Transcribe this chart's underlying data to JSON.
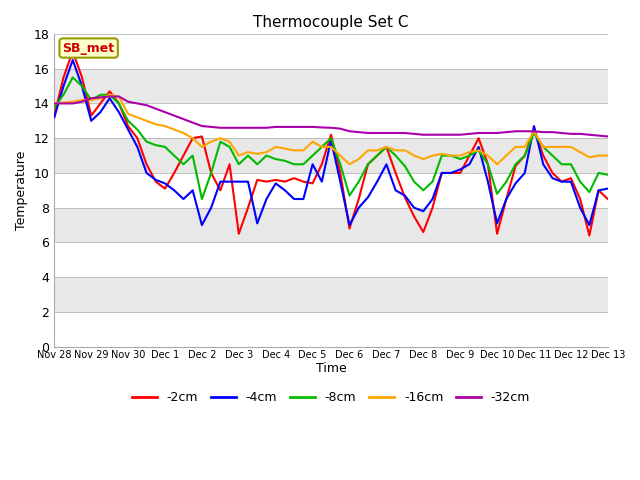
{
  "title": "Thermocouple Set C",
  "xlabel": "Time",
  "ylabel": "Temperature",
  "ylim": [
    0,
    18
  ],
  "yticks": [
    0,
    2,
    4,
    6,
    8,
    10,
    12,
    14,
    16,
    18
  ],
  "annotation": "SB_met",
  "background_color": "#ffffff",
  "legend_labels": [
    "-2cm",
    "-4cm",
    "-8cm",
    "-16cm",
    "-32cm"
  ],
  "legend_colors": [
    "#ff0000",
    "#0000ff",
    "#00bb00",
    "#ffa500",
    "#aa00aa"
  ],
  "xtick_labels": [
    "Nov 28",
    "Nov 29",
    "Nov 30",
    "Dec 1",
    "Dec 2",
    "Dec 3",
    "Dec 4",
    "Dec 5",
    "Dec 6",
    "Dec 7",
    "Dec 8",
    "Dec 9",
    "Dec 10",
    "Dec 11",
    "Dec 12",
    "Dec 13"
  ],
  "band_colors": [
    "#ffffff",
    "#e8e8e8"
  ],
  "series": {
    "-2cm": {
      "color": "#ff0000",
      "x": [
        0,
        0.25,
        0.5,
        0.75,
        1.0,
        1.25,
        1.5,
        1.75,
        2.0,
        2.25,
        2.5,
        2.75,
        3.0,
        3.25,
        3.5,
        3.75,
        4.0,
        4.25,
        4.5,
        4.75,
        5.0,
        5.25,
        5.5,
        5.75,
        6.0,
        6.25,
        6.5,
        6.75,
        7.0,
        7.25,
        7.5,
        7.75,
        8.0,
        8.25,
        8.5,
        8.75,
        9.0,
        9.25,
        9.5,
        9.75,
        10.0,
        10.25,
        10.5,
        10.75,
        11.0,
        11.25,
        11.5,
        11.75,
        12.0,
        12.25,
        12.5,
        12.75,
        13.0,
        13.25,
        13.5,
        13.75,
        14.0,
        14.25,
        14.5,
        14.75,
        15.0
      ],
      "y": [
        13.3,
        15.5,
        17.0,
        15.5,
        13.3,
        14.0,
        14.7,
        14.0,
        12.7,
        12.0,
        10.5,
        9.5,
        9.1,
        10.0,
        11.0,
        12.0,
        12.1,
        10.0,
        9.0,
        10.5,
        6.5,
        8.0,
        9.6,
        9.5,
        9.6,
        9.5,
        9.7,
        9.5,
        9.4,
        10.5,
        12.2,
        10.0,
        6.8,
        8.5,
        10.5,
        11.0,
        11.5,
        10.0,
        8.6,
        7.5,
        6.6,
        8.0,
        10.0,
        10.0,
        10.0,
        11.0,
        12.0,
        10.5,
        6.5,
        8.5,
        10.4,
        11.0,
        12.5,
        11.0,
        10.0,
        9.5,
        9.7,
        8.5,
        6.4,
        9.0,
        8.5
      ]
    },
    "-4cm": {
      "color": "#0000ff",
      "x": [
        0,
        0.25,
        0.5,
        0.75,
        1.0,
        1.25,
        1.5,
        1.75,
        2.0,
        2.25,
        2.5,
        2.75,
        3.0,
        3.25,
        3.5,
        3.75,
        4.0,
        4.25,
        4.5,
        4.75,
        5.0,
        5.25,
        5.5,
        5.75,
        6.0,
        6.25,
        6.5,
        6.75,
        7.0,
        7.25,
        7.5,
        7.75,
        8.0,
        8.25,
        8.5,
        8.75,
        9.0,
        9.25,
        9.5,
        9.75,
        10.0,
        10.25,
        10.5,
        10.75,
        11.0,
        11.25,
        11.5,
        11.75,
        12.0,
        12.25,
        12.5,
        12.75,
        13.0,
        13.25,
        13.5,
        13.75,
        14.0,
        14.25,
        14.5,
        14.75,
        15.0
      ],
      "y": [
        13.2,
        15.0,
        16.5,
        15.0,
        13.0,
        13.5,
        14.3,
        13.5,
        12.5,
        11.5,
        10.0,
        9.6,
        9.4,
        9.0,
        8.5,
        9.0,
        7.0,
        8.0,
        9.5,
        9.5,
        9.5,
        9.5,
        7.1,
        8.5,
        9.4,
        9.0,
        8.5,
        8.5,
        10.5,
        9.5,
        11.9,
        9.5,
        7.0,
        8.0,
        8.6,
        9.5,
        10.5,
        9.0,
        8.7,
        8.0,
        7.8,
        8.5,
        10.0,
        10.0,
        10.2,
        10.5,
        11.5,
        9.5,
        7.1,
        8.5,
        9.4,
        10.0,
        12.7,
        10.5,
        9.7,
        9.5,
        9.5,
        8.0,
        7.0,
        9.0,
        9.1
      ]
    },
    "-8cm": {
      "color": "#00bb00",
      "x": [
        0,
        0.25,
        0.5,
        0.75,
        1.0,
        1.25,
        1.5,
        1.75,
        2.0,
        2.25,
        2.5,
        2.75,
        3.0,
        3.25,
        3.5,
        3.75,
        4.0,
        4.25,
        4.5,
        4.75,
        5.0,
        5.25,
        5.5,
        5.75,
        6.0,
        6.25,
        6.5,
        6.75,
        7.0,
        7.25,
        7.5,
        7.75,
        8.0,
        8.25,
        8.5,
        8.75,
        9.0,
        9.25,
        9.5,
        9.75,
        10.0,
        10.25,
        10.5,
        10.75,
        11.0,
        11.25,
        11.5,
        11.75,
        12.0,
        12.25,
        12.5,
        12.75,
        13.0,
        13.25,
        13.5,
        13.75,
        14.0,
        14.25,
        14.5,
        14.75,
        15.0
      ],
      "y": [
        13.8,
        14.5,
        15.5,
        15.0,
        14.2,
        14.5,
        14.5,
        14.0,
        13.0,
        12.5,
        11.8,
        11.6,
        11.5,
        11.0,
        10.5,
        11.0,
        8.5,
        10.0,
        11.8,
        11.5,
        10.5,
        11.0,
        10.5,
        11.0,
        10.8,
        10.7,
        10.5,
        10.5,
        11.0,
        11.5,
        12.0,
        10.5,
        8.7,
        9.5,
        10.5,
        11.0,
        11.5,
        11.0,
        10.4,
        9.5,
        9.0,
        9.5,
        11.0,
        11.0,
        10.8,
        11.0,
        11.3,
        10.5,
        8.8,
        9.5,
        10.5,
        11.0,
        12.3,
        11.5,
        11.0,
        10.5,
        10.5,
        9.5,
        8.9,
        10.0,
        9.9
      ]
    },
    "-16cm": {
      "color": "#ffa500",
      "x": [
        0,
        0.25,
        0.5,
        0.75,
        1.0,
        1.25,
        1.5,
        1.75,
        2.0,
        2.25,
        2.5,
        2.75,
        3.0,
        3.25,
        3.5,
        3.75,
        4.0,
        4.25,
        4.5,
        4.75,
        5.0,
        5.25,
        5.5,
        5.75,
        6.0,
        6.25,
        6.5,
        6.75,
        7.0,
        7.25,
        7.5,
        7.75,
        8.0,
        8.25,
        8.5,
        8.75,
        9.0,
        9.25,
        9.5,
        9.75,
        10.0,
        10.25,
        10.5,
        10.75,
        11.0,
        11.25,
        11.5,
        11.75,
        12.0,
        12.25,
        12.5,
        12.75,
        13.0,
        13.25,
        13.5,
        13.75,
        14.0,
        14.25,
        14.5,
        14.75,
        15.0
      ],
      "y": [
        14.0,
        14.05,
        14.1,
        14.2,
        14.2,
        14.3,
        14.5,
        14.4,
        13.4,
        13.2,
        13.0,
        12.8,
        12.7,
        12.5,
        12.3,
        12.0,
        11.5,
        11.8,
        12.0,
        11.8,
        11.0,
        11.2,
        11.1,
        11.2,
        11.5,
        11.4,
        11.3,
        11.3,
        11.8,
        11.5,
        11.5,
        11.0,
        10.5,
        10.8,
        11.3,
        11.3,
        11.5,
        11.3,
        11.3,
        11.0,
        10.8,
        11.0,
        11.1,
        11.0,
        11.0,
        11.2,
        11.3,
        11.0,
        10.5,
        11.0,
        11.5,
        11.5,
        12.4,
        11.5,
        11.5,
        11.5,
        11.5,
        11.2,
        10.9,
        11.0,
        11.0
      ]
    },
    "-32cm": {
      "color": "#aa00aa",
      "x": [
        0,
        0.25,
        0.5,
        0.75,
        1.0,
        1.25,
        1.5,
        1.75,
        2.0,
        2.25,
        2.5,
        2.75,
        3.0,
        3.25,
        3.5,
        3.75,
        4.0,
        4.25,
        4.5,
        4.75,
        5.0,
        5.25,
        5.5,
        5.75,
        6.0,
        6.25,
        6.5,
        6.75,
        7.0,
        7.25,
        7.5,
        7.75,
        8.0,
        8.25,
        8.5,
        8.75,
        9.0,
        9.25,
        9.5,
        9.75,
        10.0,
        10.25,
        10.5,
        10.75,
        11.0,
        11.25,
        11.5,
        11.75,
        12.0,
        12.25,
        12.5,
        12.75,
        13.0,
        13.25,
        13.5,
        13.75,
        14.0,
        14.25,
        14.5,
        14.75,
        15.0
      ],
      "y": [
        14.0,
        14.0,
        14.0,
        14.1,
        14.3,
        14.35,
        14.4,
        14.4,
        14.1,
        14.0,
        13.9,
        13.7,
        13.5,
        13.3,
        13.1,
        12.9,
        12.7,
        12.65,
        12.6,
        12.6,
        12.6,
        12.6,
        12.6,
        12.6,
        12.65,
        12.65,
        12.65,
        12.65,
        12.65,
        12.62,
        12.6,
        12.55,
        12.4,
        12.35,
        12.3,
        12.3,
        12.3,
        12.3,
        12.3,
        12.25,
        12.2,
        12.2,
        12.2,
        12.2,
        12.2,
        12.25,
        12.3,
        12.3,
        12.3,
        12.35,
        12.4,
        12.4,
        12.4,
        12.35,
        12.35,
        12.3,
        12.25,
        12.25,
        12.2,
        12.15,
        12.1
      ]
    }
  }
}
